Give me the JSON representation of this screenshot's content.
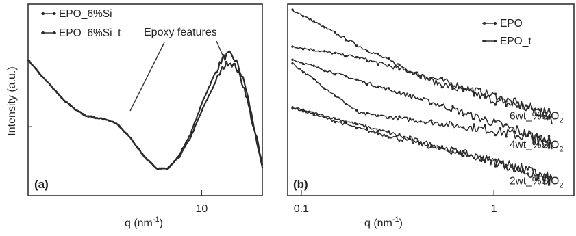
{
  "chart_data": [
    {
      "panel": "(a)",
      "type": "line",
      "ylabel": "Intensity (a.u.)",
      "xlabel": "q (nm",
      "xlabel_sup": "-1",
      "xlabel_end": ")",
      "xscale": "log",
      "xlim": [
        1.2,
        21
      ],
      "ylim": [
        0,
        1
      ],
      "x_ticks": [
        {
          "value": 10,
          "label": "10"
        }
      ],
      "legend_position": "top-left",
      "annotation": {
        "text": "Epoxy features",
        "arrows_to_x": [
          3.8,
          14
        ]
      },
      "series": [
        {
          "name": "EPO_6%Si",
          "points": [
            [
              1.2,
              0.71
            ],
            [
              1.4,
              0.63
            ],
            [
              1.6,
              0.57
            ],
            [
              1.85,
              0.5
            ],
            [
              2.1,
              0.455
            ],
            [
              2.4,
              0.42
            ],
            [
              2.8,
              0.405
            ],
            [
              3.2,
              0.395
            ],
            [
              3.6,
              0.37
            ],
            [
              4.2,
              0.3
            ],
            [
              5.0,
              0.2
            ],
            [
              5.8,
              0.14
            ],
            [
              6.6,
              0.14
            ],
            [
              7.6,
              0.21
            ],
            [
              8.8,
              0.33
            ],
            [
              10.2,
              0.5
            ],
            [
              11.8,
              0.64
            ],
            [
              13.0,
              0.72
            ],
            [
              14.0,
              0.74
            ],
            [
              15.3,
              0.7
            ],
            [
              17.0,
              0.58
            ],
            [
              19.0,
              0.36
            ],
            [
              21.0,
              0.15
            ]
          ]
        },
        {
          "name": "EPO_6%Si_t",
          "points": [
            [
              1.2,
              0.71
            ],
            [
              1.4,
              0.63
            ],
            [
              1.6,
              0.57
            ],
            [
              1.85,
              0.5
            ],
            [
              2.1,
              0.455
            ],
            [
              2.4,
              0.42
            ],
            [
              2.8,
              0.405
            ],
            [
              3.2,
              0.395
            ],
            [
              3.6,
              0.37
            ],
            [
              4.2,
              0.3
            ],
            [
              5.0,
              0.2
            ],
            [
              5.8,
              0.14
            ],
            [
              6.6,
              0.14
            ],
            [
              7.6,
              0.2
            ],
            [
              8.8,
              0.31
            ],
            [
              10.2,
              0.46
            ],
            [
              11.8,
              0.59
            ],
            [
              13.0,
              0.67
            ],
            [
              14.0,
              0.7
            ],
            [
              15.3,
              0.67
            ],
            [
              17.0,
              0.55
            ],
            [
              19.0,
              0.34
            ],
            [
              21.0,
              0.14
            ]
          ]
        }
      ]
    },
    {
      "panel": "(b)",
      "type": "line",
      "xlabel": "q (nm",
      "xlabel_sup": "-1",
      "xlabel_end": ")",
      "xscale": "log",
      "xlim": [
        0.085,
        2.6
      ],
      "ylim": [
        0,
        1
      ],
      "x_ticks": [
        {
          "value": 0.1,
          "label": "0.1"
        },
        {
          "value": 1,
          "label": "1"
        }
      ],
      "legend_position": "top-right",
      "series_labels": [
        {
          "text": "6wt_%SiO",
          "sub": "2",
          "y": 0.42
        },
        {
          "text": "4wt_%SiO",
          "sub": "2",
          "y": 0.27
        },
        {
          "text": "2wt_%SiO",
          "sub": "2",
          "y": 0.08
        }
      ],
      "series": [
        {
          "name": "EPO",
          "group": "6wt_%SiO2",
          "points": [
            [
              0.09,
              0.97
            ],
            [
              0.2,
              0.78
            ],
            [
              0.5,
              0.59
            ],
            [
              1.0,
              0.5
            ],
            [
              1.6,
              0.45
            ],
            [
              2.0,
              0.42
            ]
          ]
        },
        {
          "name": "EPO_t",
          "group": "6wt_%SiO2",
          "points": [
            [
              0.09,
              0.78
            ],
            [
              0.2,
              0.72
            ],
            [
              0.5,
              0.61
            ],
            [
              1.0,
              0.52
            ],
            [
              1.6,
              0.45
            ],
            [
              2.0,
              0.41
            ]
          ]
        },
        {
          "name": "EPO",
          "group": "4wt_%SiO2",
          "points": [
            [
              0.09,
              0.69
            ],
            [
              0.2,
              0.43
            ],
            [
              0.5,
              0.38
            ],
            [
              1.0,
              0.34
            ],
            [
              1.6,
              0.3
            ],
            [
              2.0,
              0.28
            ]
          ]
        },
        {
          "name": "EPO_t",
          "group": "4wt_%SiO2",
          "points": [
            [
              0.09,
              0.71
            ],
            [
              0.2,
              0.6
            ],
            [
              0.5,
              0.48
            ],
            [
              1.0,
              0.38
            ],
            [
              1.6,
              0.31
            ],
            [
              2.0,
              0.27
            ]
          ]
        },
        {
          "name": "EPO",
          "group": "2wt_%SiO2",
          "points": [
            [
              0.09,
              0.46
            ],
            [
              0.2,
              0.35
            ],
            [
              0.5,
              0.25
            ],
            [
              1.0,
              0.18
            ],
            [
              1.6,
              0.12
            ],
            [
              2.0,
              0.08
            ]
          ]
        },
        {
          "name": "EPO_t",
          "group": "2wt_%SiO2",
          "points": [
            [
              0.09,
              0.46
            ],
            [
              0.2,
              0.37
            ],
            [
              0.5,
              0.26
            ],
            [
              1.0,
              0.18
            ],
            [
              1.6,
              0.11
            ],
            [
              2.0,
              0.07
            ]
          ]
        }
      ]
    }
  ]
}
